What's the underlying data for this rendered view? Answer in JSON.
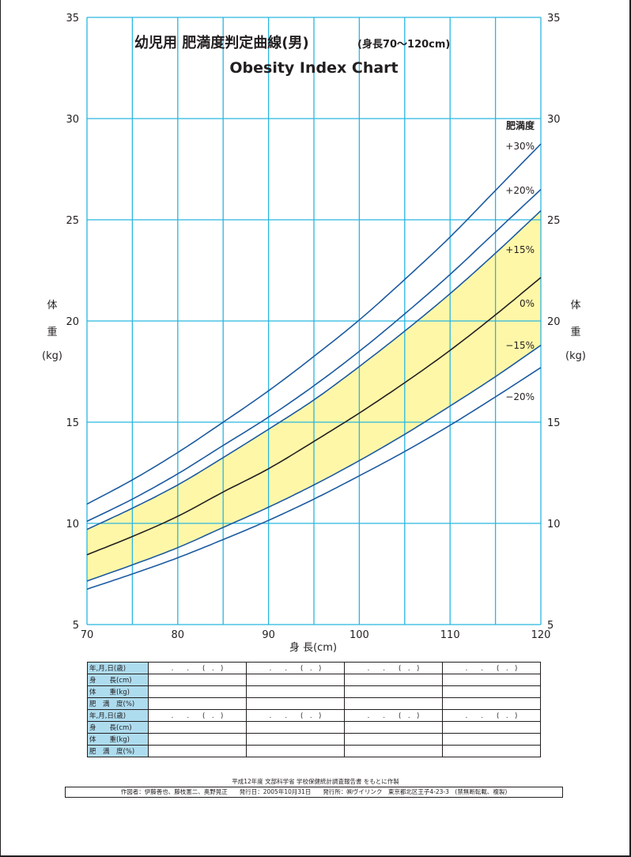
{
  "chart_data": {
    "type": "line",
    "title": "幼児用 肥満度判定曲線(男)",
    "title_sub": "(身長70〜120cm)",
    "subtitle": "Obesity Index Chart",
    "xlabel": "身 長(cm)",
    "ylabel_left": [
      "体",
      "重",
      "(kg)"
    ],
    "ylabel_right": [
      "体",
      "重",
      "(kg)"
    ],
    "xlim": [
      70,
      120
    ],
    "ylim": [
      5,
      35
    ],
    "x_ticks": [
      70,
      80,
      90,
      100,
      110,
      120
    ],
    "y_ticks": [
      5,
      10,
      15,
      20,
      25,
      30,
      35
    ],
    "x_grid_step": 5,
    "y_grid_step": 5,
    "grid": true,
    "legend_title": "肥満度",
    "x": [
      70,
      75,
      80,
      85,
      90,
      95,
      100,
      105,
      110,
      115,
      120
    ],
    "series": [
      {
        "name": "+30%",
        "color": "#1b5aa0",
        "values": [
          10.95,
          12.15,
          13.5,
          15.0,
          16.55,
          18.25,
          20.05,
          22.05,
          24.15,
          26.45,
          28.75
        ]
      },
      {
        "name": "+20%",
        "color": "#1b5aa0",
        "values": [
          10.1,
          11.2,
          12.45,
          13.85,
          15.25,
          16.8,
          18.5,
          20.35,
          22.3,
          24.4,
          26.5
        ]
      },
      {
        "name": "+15%",
        "color": "#1b5aa0",
        "values": [
          9.7,
          10.75,
          11.9,
          13.25,
          14.65,
          16.1,
          17.75,
          19.5,
          21.35,
          23.35,
          25.45
        ]
      },
      {
        "name": "0%",
        "color": "#231f20",
        "values": [
          8.45,
          9.35,
          10.35,
          11.55,
          12.7,
          14.05,
          15.45,
          16.95,
          18.55,
          20.3,
          22.15
        ]
      },
      {
        "name": "−15%",
        "color": "#1b5aa0",
        "values": [
          7.15,
          7.95,
          8.8,
          9.8,
          10.8,
          11.9,
          13.1,
          14.4,
          15.8,
          17.25,
          18.8
        ]
      },
      {
        "name": "−20%",
        "color": "#1b5aa0",
        "values": [
          6.75,
          7.5,
          8.3,
          9.2,
          10.15,
          11.2,
          12.35,
          13.55,
          14.85,
          16.25,
          17.7
        ]
      }
    ],
    "band": {
      "from": "−15%",
      "to": "+15%",
      "color": "#fff7a8"
    },
    "grid_color": "#29b6e0"
  },
  "record_table": {
    "labels": [
      "年,月,日(歳)",
      "身　　長(cm)",
      "体　　重(kg)",
      "肥　満　度(%)",
      "年,月,日(歳)",
      "身　　長(cm)",
      "体　　重(kg)",
      "肥　満　度(%)"
    ],
    "date_cell": ".　　.　　(　.　)"
  },
  "footer": {
    "source": "平成12年度 文部科学省 学校保健統計調査報告書 をもとに作製",
    "credit": "作図者：伊藤善也、藤枝憲二、奥野晃正　　発行日：2005年10月31日　　発行所：㈱ヴイリンク　東京都北区王子4-23-3　(禁無断転載、複製)"
  }
}
